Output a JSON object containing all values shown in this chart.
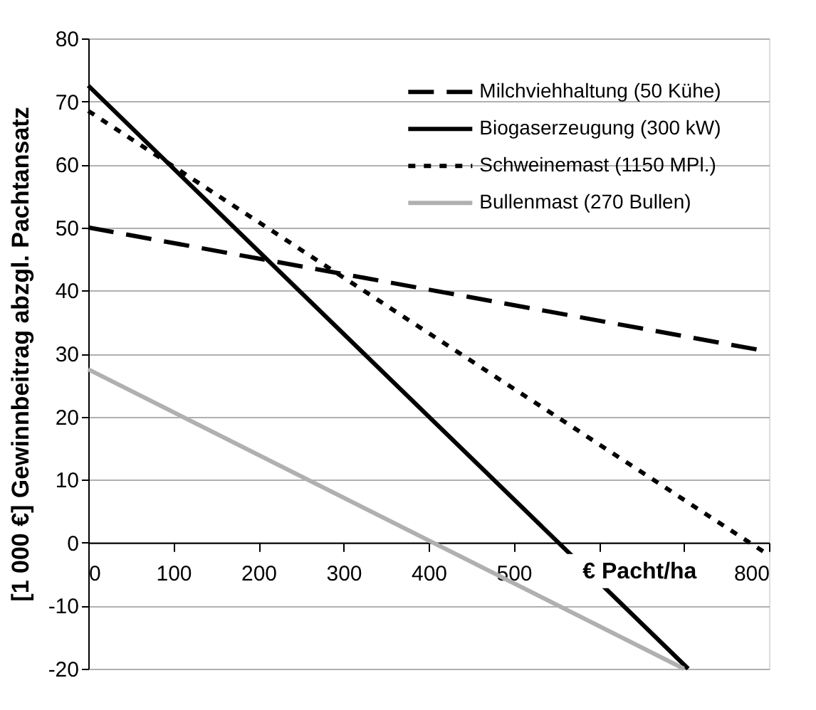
{
  "chart_data": {
    "type": "line",
    "xlabel": "€ Pacht/ha",
    "ylabel": "[1 000 €] Gewinnbeitrag abzgl. Pachtansatz",
    "xlim": [
      0,
      800
    ],
    "ylim": [
      -20,
      80
    ],
    "xticks": [
      0,
      100,
      200,
      300,
      400,
      500,
      {
        "value": 600,
        "label": null
      },
      {
        "value": 700,
        "label": null
      },
      800
    ],
    "yticks": [
      -20,
      -10,
      0,
      10,
      20,
      30,
      40,
      50,
      60,
      70,
      80
    ],
    "grid": "y",
    "legend": "top right",
    "marker": "none",
    "series": [
      {
        "name": "Milchviehhaltung (50 Kühe)",
        "color": "#000000",
        "line_style": "dashed",
        "x": [
          0,
          800
        ],
        "values": [
          50,
          30.3
        ]
      },
      {
        "name": "Biogaserzeugung (300 kW)",
        "color": "#000000",
        "line_style": "solid",
        "x": [
          0,
          705
        ],
        "values": [
          72.5,
          -20
        ]
      },
      {
        "name": "Schweinemast (1150 MPl.)",
        "color": "#000000",
        "line_style": "dotted",
        "x": [
          0,
          800
        ],
        "values": [
          68.5,
          -2
        ]
      },
      {
        "name": "Bullenmast (270 Bullen)",
        "color": "#b0b0b0",
        "line_style": "solid",
        "x": [
          0,
          700
        ],
        "values": [
          27.5,
          -20
        ]
      }
    ]
  }
}
